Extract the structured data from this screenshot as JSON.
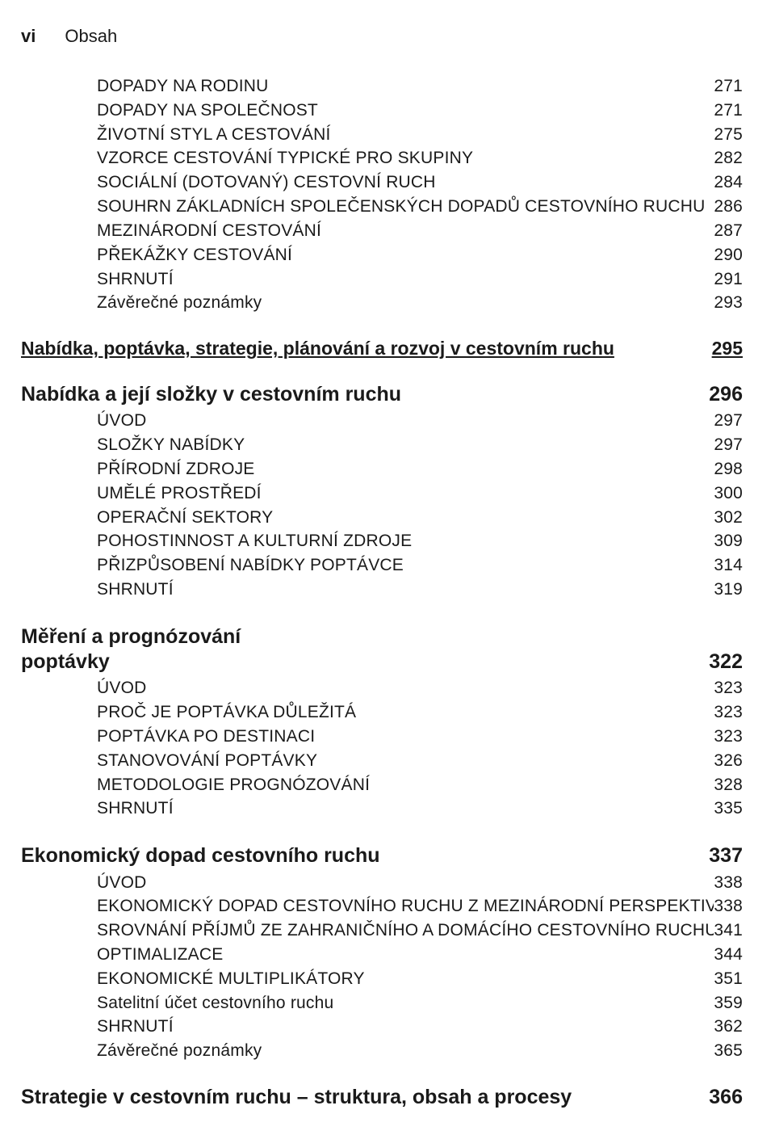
{
  "header": {
    "roman": "vi",
    "title": "Obsah"
  },
  "block1": [
    {
      "label": "DOPADY NA RODINU",
      "num": "271"
    },
    {
      "label": "DOPADY NA SPOLEČNOST",
      "num": "271"
    },
    {
      "label": "ŽIVOTNÍ STYL A CESTOVÁNÍ",
      "num": "275"
    },
    {
      "label": "VZORCE CESTOVÁNÍ TYPICKÉ PRO SKUPINY",
      "num": "282"
    },
    {
      "label": "SOCIÁLNÍ (DOTOVANÝ) CESTOVNÍ RUCH",
      "num": "284"
    },
    {
      "label": "SOUHRN ZÁKLADNÍCH SPOLEČENSKÝCH DOPADŮ CESTOVNÍHO RUCHU",
      "num": "286"
    },
    {
      "label": "MEZINÁRODNÍ CESTOVÁNÍ",
      "num": "287"
    },
    {
      "label": "PŘEKÁŽKY CESTOVÁNÍ",
      "num": "290"
    },
    {
      "label": "SHRNUTÍ",
      "num": "291"
    },
    {
      "label": "Závěrečné poznámky",
      "num": "293"
    }
  ],
  "section1": {
    "label": "Nabídka, poptávka, strategie, plánování a rozvoj v cestovním ruchu",
    "num": "295"
  },
  "chapter1": {
    "label": "Nabídka a její složky v cestovním ruchu",
    "num": "296"
  },
  "block2": [
    {
      "label": "ÚVOD",
      "num": "297"
    },
    {
      "label": "SLOŽKY NABÍDKY",
      "num": "297"
    },
    {
      "label": "PŘÍRODNÍ ZDROJE",
      "num": "298"
    },
    {
      "label": "UMĚLÉ PROSTŘEDÍ",
      "num": "300"
    },
    {
      "label": "OPERAČNÍ SEKTORY",
      "num": "302"
    },
    {
      "label": "POHOSTINNOST A KULTURNÍ ZDROJE",
      "num": "309"
    },
    {
      "label": "PŘIZPŮSOBENÍ NABÍDKY POPTÁVCE",
      "num": "314"
    },
    {
      "label": "SHRNUTÍ",
      "num": "319"
    }
  ],
  "chapter2": {
    "line1": "Měření a prognózování",
    "line2": "poptávky",
    "num": "322"
  },
  "block3": [
    {
      "label": "ÚVOD",
      "num": "323"
    },
    {
      "label": "PROČ JE POPTÁVKA DŮLEŽITÁ",
      "num": "323"
    },
    {
      "label": "POPTÁVKA PO DESTINACI",
      "num": "323"
    },
    {
      "label": "STANOVOVÁNÍ POPTÁVKY",
      "num": "326"
    },
    {
      "label": "METODOLOGIE PROGNÓZOVÁNÍ",
      "num": "328"
    },
    {
      "label": "SHRNUTÍ",
      "num": "335"
    }
  ],
  "chapter3": {
    "label": "Ekonomický dopad cestovního ruchu",
    "num": "337"
  },
  "block4": [
    {
      "label": "ÚVOD",
      "num": "338"
    },
    {
      "label": "EKONOMICKÝ DOPAD CESTOVNÍHO RUCHU Z MEZINÁRODNÍ PERSPEKTIVY",
      "num": "338"
    },
    {
      "label": "SROVNÁNÍ PŘÍJMŮ ZE ZAHRANIČNÍHO A DOMÁCÍHO CESTOVNÍHO RUCHU",
      "num": "341"
    },
    {
      "label": "OPTIMALIZACE",
      "num": "344"
    },
    {
      "label": "EKONOMICKÉ MULTIPLIKÁTORY",
      "num": "351"
    },
    {
      "label": "Satelitní účet cestovního ruchu",
      "num": "359"
    },
    {
      "label": "SHRNUTÍ",
      "num": "362"
    },
    {
      "label": "Závěrečné poznámky",
      "num": "365"
    }
  ],
  "footer": {
    "label": "Strategie v cestovním ruchu – struktura, obsah a procesy",
    "num": "366"
  },
  "colors": {
    "text": "#1a1a1a",
    "bg": "#ffffff"
  },
  "fontsizes": {
    "entry": 21,
    "section": 23,
    "chapter": 25,
    "header": 22
  }
}
